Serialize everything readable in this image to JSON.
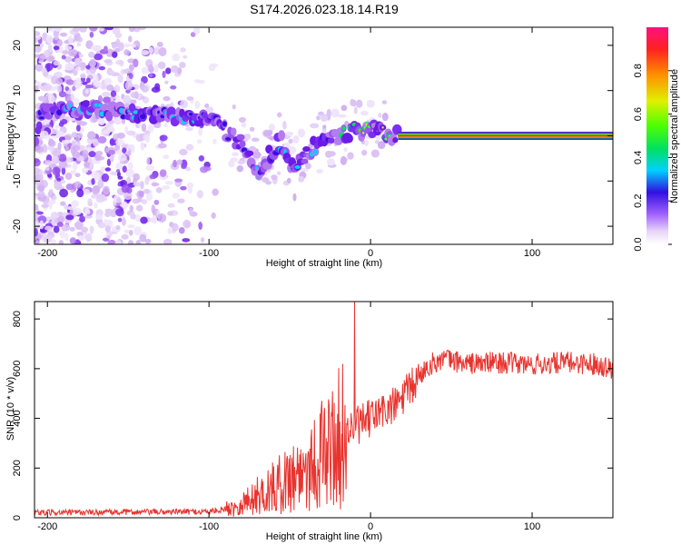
{
  "title": "S174.2026.023.18.14.R19",
  "chart_data": [
    {
      "type": "heatmap",
      "name": "spectrogram",
      "xlabel": "Height of straight line (km)",
      "ylabel": "Frequency (Hz)",
      "xlim": [
        -208,
        150
      ],
      "ylim": [
        -24,
        24
      ],
      "xticks": [
        -200,
        -100,
        0,
        100
      ],
      "yticks": [
        -20,
        -10,
        0,
        10,
        20
      ],
      "ridge_points": [
        {
          "x": -205,
          "y": 5
        },
        {
          "x": -190,
          "y": 6
        },
        {
          "x": -170,
          "y": 6
        },
        {
          "x": -150,
          "y": 5
        },
        {
          "x": -130,
          "y": 4.5
        },
        {
          "x": -110,
          "y": 4
        },
        {
          "x": -95,
          "y": 3
        },
        {
          "x": -85,
          "y": 0
        },
        {
          "x": -75,
          "y": -4
        },
        {
          "x": -70,
          "y": -8
        },
        {
          "x": -62,
          "y": -4
        },
        {
          "x": -55,
          "y": -1
        },
        {
          "x": -50,
          "y": -6
        },
        {
          "x": -45,
          "y": -7
        },
        {
          "x": -38,
          "y": -3
        },
        {
          "x": -30,
          "y": -2
        },
        {
          "x": -20,
          "y": 0
        },
        {
          "x": -10,
          "y": 1
        },
        {
          "x": 0,
          "y": 2
        },
        {
          "x": 10,
          "y": 1
        },
        {
          "x": 17,
          "y": 0
        },
        {
          "x": 150,
          "y": 0
        }
      ],
      "colorbar": {
        "label": "Normalized spectral amplitude",
        "range": [
          0,
          1
        ],
        "ticks": [
          "0.0",
          "0.2",
          "0.4",
          "0.6",
          "0.8"
        ]
      }
    },
    {
      "type": "line",
      "name": "snr",
      "xlabel": "Height of straight line (km)",
      "ylabel": "SNR (10 * v/v)",
      "xlim": [
        -208,
        150
      ],
      "ylim": [
        0,
        870
      ],
      "xticks": [
        -200,
        -100,
        0,
        100
      ],
      "yticks": [
        0,
        200,
        400,
        600,
        800
      ],
      "color": "#e8342f",
      "trend": [
        {
          "x": -208,
          "y": 20
        },
        {
          "x": -100,
          "y": 25
        },
        {
          "x": -85,
          "y": 40
        },
        {
          "x": -60,
          "y": 120
        },
        {
          "x": -40,
          "y": 200
        },
        {
          "x": -25,
          "y": 280
        },
        {
          "x": -15,
          "y": 350
        },
        {
          "x": -5,
          "y": 380
        },
        {
          "x": 5,
          "y": 420
        },
        {
          "x": 15,
          "y": 450
        },
        {
          "x": 25,
          "y": 520
        },
        {
          "x": 35,
          "y": 610
        },
        {
          "x": 45,
          "y": 640
        },
        {
          "x": 60,
          "y": 620
        },
        {
          "x": 80,
          "y": 625
        },
        {
          "x": 100,
          "y": 615
        },
        {
          "x": 120,
          "y": 625
        },
        {
          "x": 140,
          "y": 620
        },
        {
          "x": 150,
          "y": 600
        }
      ],
      "spike": {
        "x": -10,
        "y": 870
      }
    }
  ]
}
